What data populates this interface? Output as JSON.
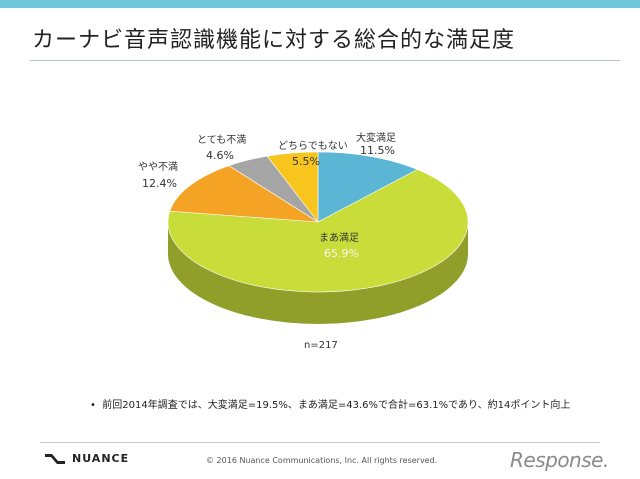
{
  "title": "カーナビ音声認識機能に対する総合的な満足度",
  "chart_data": {
    "type": "pie",
    "slices": [
      {
        "label": "大変満足",
        "value": 11.5,
        "display": "11.5%",
        "color": "#5bb6d6"
      },
      {
        "label": "まあ満足",
        "value": 65.9,
        "display": "65.9%",
        "color": "#c8dc3a"
      },
      {
        "label": "やや不満",
        "value": 12.4,
        "display": "12.4%",
        "color": "#f4a324"
      },
      {
        "label": "とても不満",
        "value": 4.6,
        "display": "4.6%",
        "color": "#a5a5a5"
      },
      {
        "label": "どちらでもない",
        "value": 5.5,
        "display": "5.5%",
        "color": "#f7c51e"
      }
    ],
    "sample": "n=217"
  },
  "note": "前回2014年調査では、大変満足=19.5%、まあ満足=43.6%で合計=63.1%であり、約14ポイント向上",
  "footer": {
    "brand": "NUANCE",
    "copyright": "© 2016 Nuance Communications, Inc. All rights reserved.",
    "watermark": "Response."
  }
}
